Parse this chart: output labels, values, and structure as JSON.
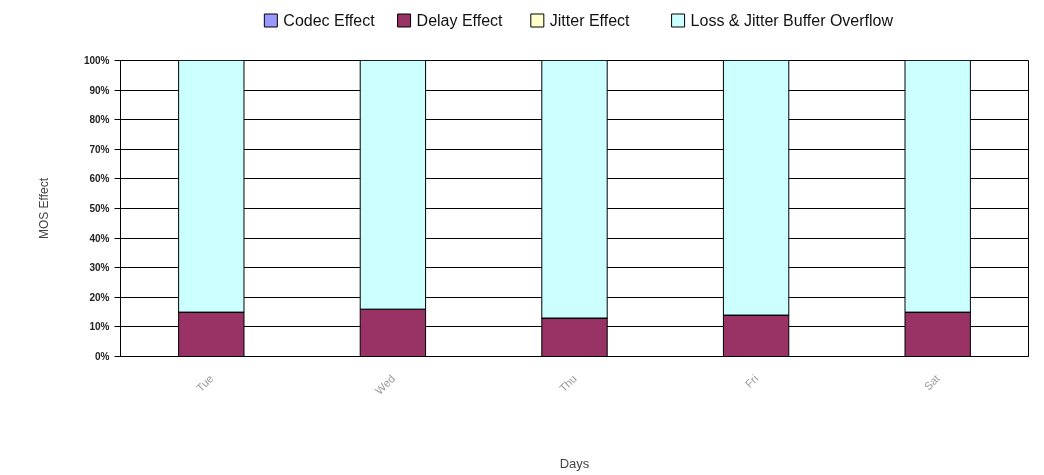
{
  "chart_data": {
    "type": "bar",
    "stacked": true,
    "xlabel": "Days",
    "ylabel": "MOS Effect",
    "categories": [
      "Tue",
      "Wed",
      "Thu",
      "Fri",
      "Sat"
    ],
    "series": [
      {
        "name": "Codec Effect",
        "color": "#9999ff",
        "values": [
          0,
          0,
          0,
          0,
          0
        ]
      },
      {
        "name": "Delay Effect",
        "color": "#993366",
        "values": [
          15,
          16,
          13,
          14,
          15
        ]
      },
      {
        "name": "Jitter Effect",
        "color": "#ffffcc",
        "values": [
          0,
          0,
          0,
          0,
          0
        ]
      },
      {
        "name": "Loss & Jitter Buffer Overflow",
        "color": "#ccffff",
        "values": [
          85,
          84,
          87,
          86,
          85
        ]
      }
    ],
    "ylim": [
      0,
      100
    ],
    "yticks": [
      {
        "value": 0,
        "label": "0%"
      },
      {
        "value": 10,
        "label": "10%"
      },
      {
        "value": 20,
        "label": "20%"
      },
      {
        "value": 30,
        "label": "30%"
      },
      {
        "value": 40,
        "label": "40%"
      },
      {
        "value": 50,
        "label": "50%"
      },
      {
        "value": 60,
        "label": "60%"
      },
      {
        "value": 70,
        "label": "70%"
      },
      {
        "value": 80,
        "label": "80%"
      },
      {
        "value": 90,
        "label": "90%"
      },
      {
        "value": 100,
        "label": "100%"
      }
    ],
    "grid": "y",
    "legend": "top"
  }
}
